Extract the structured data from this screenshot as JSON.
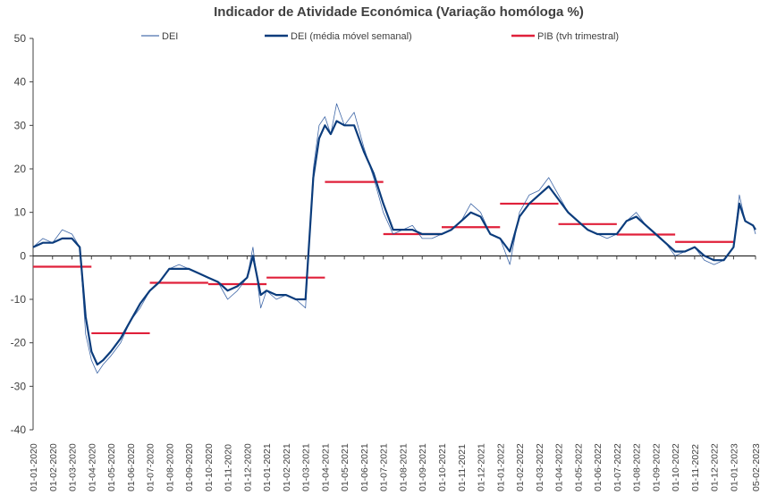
{
  "chart_data": {
    "type": "line",
    "title": "Indicador de Atividade Económica (Variação homóloga %)",
    "xlabel": "",
    "ylabel": "",
    "ylim": [
      -40,
      50
    ],
    "yticks": [
      50,
      40,
      30,
      20,
      10,
      0,
      -10,
      -20,
      -30,
      -40
    ],
    "ytick_labels": [
      "50",
      "40",
      "30",
      "20",
      "10",
      "0",
      "-10",
      "-20",
      "-30",
      "-40"
    ],
    "grid": false,
    "legend_position": "top",
    "x_tick_labels": [
      "01-01-2020",
      "01-02-2020",
      "01-03-2020",
      "01-04-2020",
      "01-05-2020",
      "01-06-2020",
      "01-07-2020",
      "01-08-2020",
      "01-09-2020",
      "01-10-2020",
      "01-11-2020",
      "01-12-2020",
      "01-01-2021",
      "01-02-2021",
      "01-03-2021",
      "01-04-2021",
      "01-05-2021",
      "01-06-2021",
      "01-07-2021",
      "01-08-2021",
      "01-09-2021",
      "01-10-2021",
      "01-11-2021",
      "01-12-2021",
      "01-01-2022",
      "01-02-2022",
      "01-03-2022",
      "01-04-2022",
      "01-05-2022",
      "01-06-2022",
      "01-07-2022",
      "01-08-2022",
      "01-09-2022",
      "01-10-2022",
      "01-11-2022",
      "01-12-2022",
      "01-01-2023",
      "05-02-2023"
    ],
    "x_month_index": [
      0,
      1,
      2,
      3,
      4,
      5,
      6,
      7,
      8,
      9,
      10,
      11,
      12,
      13,
      14,
      15,
      16,
      17,
      18,
      19,
      20,
      21,
      22,
      23,
      24,
      25,
      26,
      27,
      28,
      29,
      30,
      31,
      32,
      33,
      34,
      35,
      36,
      37.13
    ],
    "series": [
      {
        "name": "DEI",
        "style": "thin",
        "color": "#1f4e99",
        "x": [
          0,
          0.5,
          1,
          1.5,
          2,
          2.4,
          2.7,
          3,
          3.3,
          3.6,
          4,
          4.5,
          5,
          5.5,
          6,
          6.5,
          7,
          7.5,
          8,
          8.5,
          9,
          9.5,
          10,
          10.5,
          11,
          11.3,
          11.7,
          12,
          12.5,
          13,
          13.5,
          14,
          14.4,
          14.7,
          15,
          15.3,
          15.6,
          16,
          16.5,
          17,
          17.5,
          18,
          18.5,
          19,
          19.5,
          20,
          20.5,
          21,
          21.5,
          22,
          22.5,
          23,
          23.5,
          24,
          24.5,
          25,
          25.5,
          26,
          26.5,
          27,
          27.5,
          28,
          28.5,
          29,
          29.5,
          30,
          30.5,
          31,
          31.5,
          32,
          32.5,
          33,
          33.5,
          34,
          34.5,
          35,
          35.5,
          36,
          36.3,
          36.6,
          37,
          37.13
        ],
        "values": [
          2,
          4,
          3,
          6,
          5,
          2,
          -18,
          -24,
          -27,
          -25,
          -23,
          -20,
          -15,
          -12,
          -8,
          -6,
          -3,
          -2,
          -3,
          -4,
          -5,
          -6,
          -10,
          -8,
          -5,
          2,
          -12,
          -8,
          -10,
          -9,
          -10,
          -12,
          20,
          30,
          32,
          28,
          35,
          30,
          33,
          25,
          18,
          10,
          5,
          6,
          7,
          4,
          4,
          5,
          6,
          8,
          12,
          10,
          5,
          4,
          -2,
          10,
          14,
          15,
          18,
          14,
          10,
          8,
          6,
          5,
          4,
          5,
          8,
          10,
          7,
          5,
          3,
          0,
          1,
          2,
          -1,
          -2,
          -1,
          2,
          14,
          8,
          7,
          5
        ]
      },
      {
        "name": "DEI (média móvel semanal)",
        "style": "thick",
        "color": "#0b3c7c",
        "x": [
          0,
          0.5,
          1,
          1.5,
          2,
          2.4,
          2.7,
          3,
          3.3,
          3.6,
          4,
          4.5,
          5,
          5.5,
          6,
          6.5,
          7,
          7.5,
          8,
          8.5,
          9,
          9.5,
          10,
          10.5,
          11,
          11.3,
          11.7,
          12,
          12.5,
          13,
          13.5,
          14,
          14.4,
          14.7,
          15,
          15.3,
          15.6,
          16,
          16.5,
          17,
          17.5,
          18,
          18.5,
          19,
          19.5,
          20,
          20.5,
          21,
          21.5,
          22,
          22.5,
          23,
          23.5,
          24,
          24.5,
          25,
          25.5,
          26,
          26.5,
          27,
          27.5,
          28,
          28.5,
          29,
          29.5,
          30,
          30.5,
          31,
          31.5,
          32,
          32.5,
          33,
          33.5,
          34,
          34.5,
          35,
          35.5,
          36,
          36.3,
          36.6,
          37,
          37.13
        ],
        "values": [
          2,
          3,
          3,
          4,
          4,
          2,
          -14,
          -22,
          -25,
          -24,
          -22,
          -19,
          -15,
          -11,
          -8,
          -6,
          -3,
          -3,
          -3,
          -4,
          -5,
          -6,
          -8,
          -7,
          -5,
          0,
          -9,
          -8,
          -9,
          -9,
          -10,
          -10,
          18,
          27,
          30,
          28,
          31,
          30,
          30,
          24,
          19,
          12,
          6,
          6,
          6,
          5,
          5,
          5,
          6,
          8,
          10,
          9,
          5,
          4,
          1,
          9,
          12,
          14,
          16,
          13,
          10,
          8,
          6,
          5,
          5,
          5,
          8,
          9,
          7,
          5,
          3,
          1,
          1,
          2,
          0,
          -1,
          -1,
          2,
          12,
          8,
          7,
          6
        ]
      },
      {
        "name": "PIB (tvh trimestral)",
        "style": "step",
        "color": "#e0203a",
        "segments": [
          {
            "start": 0,
            "end": 3,
            "value": -2.5
          },
          {
            "start": 3,
            "end": 6,
            "value": -17.8
          },
          {
            "start": 6,
            "end": 9,
            "value": -6.2
          },
          {
            "start": 9,
            "end": 12,
            "value": -6.5
          },
          {
            "start": 12,
            "end": 15,
            "value": -5.0
          },
          {
            "start": 15,
            "end": 18,
            "value": 17.0
          },
          {
            "start": 18,
            "end": 21,
            "value": 5.0
          },
          {
            "start": 21,
            "end": 24,
            "value": 6.6
          },
          {
            "start": 24,
            "end": 27,
            "value": 12.0
          },
          {
            "start": 27,
            "end": 30,
            "value": 7.3
          },
          {
            "start": 30,
            "end": 33,
            "value": 4.9
          },
          {
            "start": 33,
            "end": 36,
            "value": 3.2
          }
        ]
      }
    ]
  }
}
